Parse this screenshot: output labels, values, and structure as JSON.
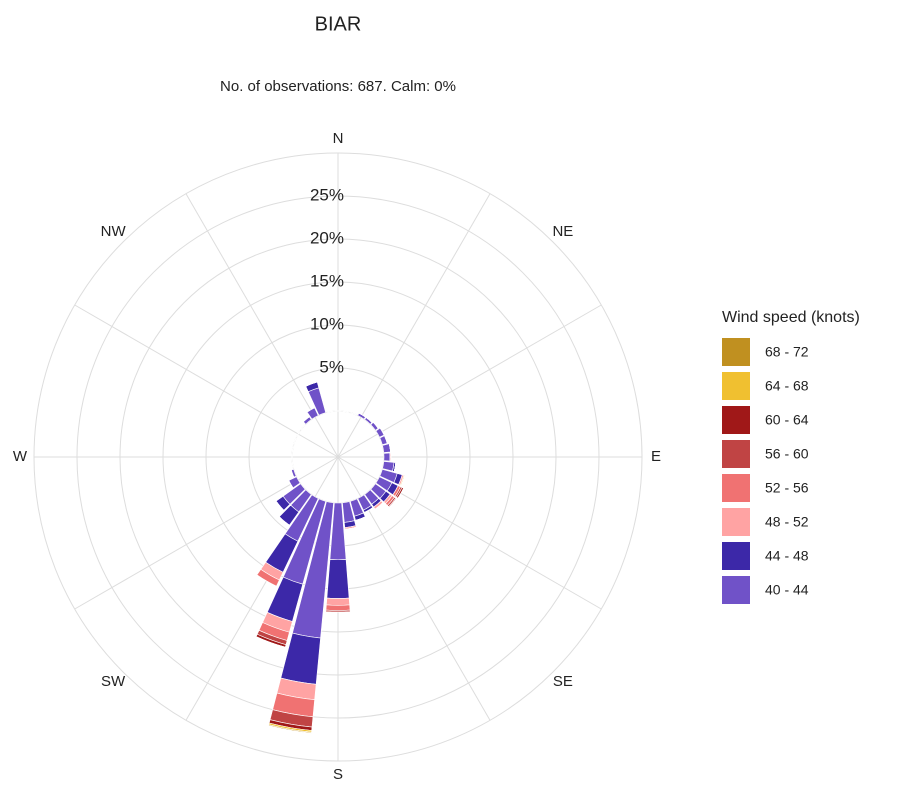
{
  "chart_data": {
    "type": "windrose",
    "title": "BIAR",
    "subtitle": "No. of observations: 687. Calm: 0%",
    "legend_title": "Wind speed (knots)",
    "direction_labels": [
      "N",
      "NE",
      "E",
      "SE",
      "S",
      "SW",
      "W",
      "NW"
    ],
    "rlim": [
      0,
      30
    ],
    "rticks": [
      {
        "value": 5,
        "label": "5%"
      },
      {
        "value": 10,
        "label": "10%"
      },
      {
        "value": 15,
        "label": "15%"
      },
      {
        "value": 20,
        "label": "20%"
      },
      {
        "value": 25,
        "label": "25%"
      }
    ],
    "grid": true,
    "series": [
      {
        "name": "40 - 44",
        "color": "#7052c8",
        "values": [
          0,
          0,
          0.3,
          0.3,
          0.4,
          0.6,
          0.6,
          0.8,
          0.7,
          1.2,
          1.8,
          1.6,
          1.5,
          1.4,
          1.5,
          1.8,
          2.3,
          6.6,
          15.8,
          10,
          5.5,
          2.5,
          2.5,
          1,
          0.3,
          0,
          0,
          0,
          0,
          0,
          0,
          0.4,
          1,
          3,
          0,
          0
        ]
      },
      {
        "name": "44 - 48",
        "color": "#3c28a8",
        "values": [
          0,
          0,
          0,
          0,
          0,
          0,
          0,
          0,
          0,
          0.2,
          0.6,
          0.8,
          0.6,
          0.4,
          0.3,
          0.5,
          0.6,
          4.5,
          5.4,
          4.5,
          4,
          1.9,
          1,
          0,
          0,
          0,
          0,
          0,
          0,
          0,
          0,
          0,
          0,
          0.7,
          0,
          0
        ]
      },
      {
        "name": "48 - 52",
        "color": "#ffa3a3",
        "values": [
          0,
          0,
          0,
          0,
          0,
          0,
          0,
          0,
          0.1,
          0,
          0.2,
          0,
          0.3,
          0.3,
          0,
          0,
          0.2,
          0.8,
          1.8,
          1.3,
          1,
          0,
          0,
          0,
          0,
          0,
          0,
          0,
          0,
          0,
          0,
          0,
          0,
          0,
          0,
          0
        ]
      },
      {
        "name": "52 - 56",
        "color": "#f07272",
        "values": [
          0,
          0,
          0,
          0,
          0,
          0,
          0,
          0,
          0,
          0,
          0,
          0.3,
          0.3,
          0,
          0,
          0,
          0,
          0.6,
          2,
          1,
          0.8,
          0,
          0,
          0,
          0,
          0,
          0,
          0,
          0,
          0,
          0,
          0,
          0,
          0,
          0,
          0
        ]
      },
      {
        "name": "56 - 60",
        "color": "#c04444",
        "values": [
          0,
          0,
          0,
          0,
          0,
          0,
          0,
          0,
          0,
          0,
          0,
          0.2,
          0.2,
          0,
          0,
          0,
          0,
          0.2,
          1.2,
          0.5,
          0,
          0,
          0,
          0,
          0,
          0,
          0,
          0,
          0,
          0,
          0,
          0,
          0,
          0,
          0,
          0
        ]
      },
      {
        "name": "60 - 64",
        "color": "#a01818",
        "values": [
          0,
          0,
          0,
          0,
          0,
          0,
          0,
          0,
          0,
          0,
          0,
          0.2,
          0.1,
          0,
          0,
          0,
          0,
          0,
          0.4,
          0.3,
          0,
          0,
          0,
          0,
          0,
          0,
          0,
          0,
          0,
          0,
          0,
          0,
          0,
          0,
          0,
          0
        ]
      },
      {
        "name": "64 - 68",
        "color": "#f0c030",
        "values": [
          0,
          0,
          0,
          0,
          0,
          0,
          0,
          0,
          0,
          0,
          0.1,
          0,
          0,
          0,
          0,
          0,
          0,
          0,
          0.2,
          0,
          0,
          0,
          0,
          0,
          0,
          0,
          0,
          0,
          0,
          0,
          0,
          0,
          0,
          0,
          0,
          0
        ]
      },
      {
        "name": "68 - 72",
        "color": "#c09020",
        "values": [
          0,
          0,
          0,
          0,
          0,
          0,
          0,
          0,
          0,
          0,
          0,
          0,
          0,
          0,
          0,
          0,
          0,
          0,
          0.1,
          0,
          0,
          0,
          0,
          0,
          0,
          0,
          0,
          0,
          0,
          0,
          0,
          0,
          0,
          0,
          0,
          0
        ]
      }
    ]
  }
}
